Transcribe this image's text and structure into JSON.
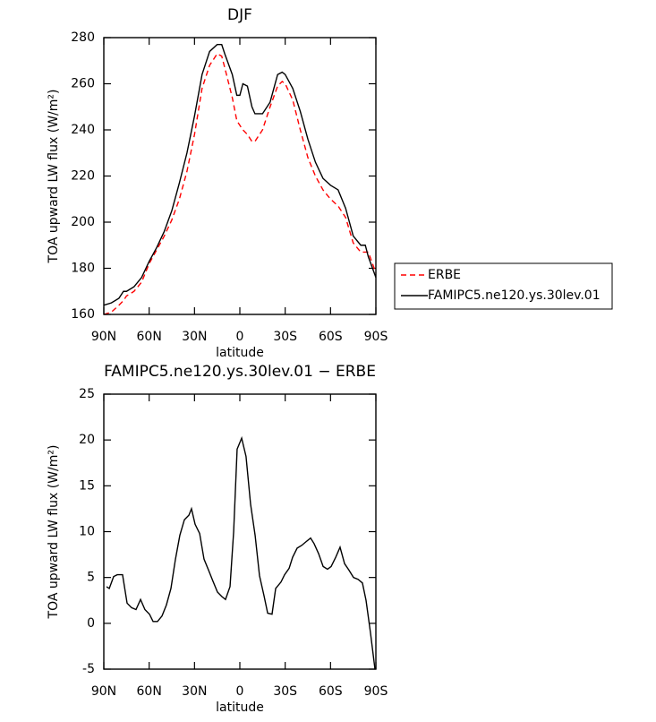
{
  "chart_data": [
    {
      "type": "line",
      "title": "DJF",
      "x_label": "latitude",
      "y_label": "TOA upward LW flux (W/m²)",
      "x": [
        90,
        85,
        80,
        77,
        75,
        70,
        65,
        60,
        55,
        50,
        45,
        40,
        35,
        30,
        25,
        20,
        15,
        12,
        10,
        5,
        2,
        0,
        -2,
        -5,
        -8,
        -10,
        -15,
        -20,
        -25,
        -28,
        -30,
        -35,
        -40,
        -45,
        -50,
        -55,
        -60,
        -65,
        -70,
        -75,
        -80,
        -83,
        -85,
        -90
      ],
      "series": [
        {
          "name": "ERBE",
          "color": "#ff0000",
          "dash": true,
          "values": [
            160,
            161,
            164,
            166,
            168,
            170,
            174,
            182,
            188,
            194,
            201,
            210,
            222,
            238,
            258,
            268,
            273,
            272,
            267,
            254,
            244,
            242,
            240,
            238,
            235,
            235,
            240,
            250,
            259,
            261,
            260,
            253,
            240,
            228,
            220,
            214,
            210,
            207,
            202,
            191,
            187,
            187,
            187,
            178
          ]
        },
        {
          "name": "FAMIPC5.ne120.ys.30lev.01",
          "color": "#000000",
          "dash": false,
          "values": [
            164,
            165,
            167,
            170,
            170,
            172,
            176,
            183,
            189,
            196,
            205,
            217,
            230,
            246,
            264,
            274,
            277,
            277,
            273,
            264,
            255,
            255,
            260,
            259,
            250,
            247,
            247,
            252,
            264,
            265,
            264,
            258,
            248,
            236,
            226,
            219,
            216,
            214,
            206,
            194,
            190,
            190,
            185,
            176
          ]
        }
      ],
      "xlim": [
        90,
        -90
      ],
      "xticks": [
        {
          "value": 90,
          "label": "90N"
        },
        {
          "value": 60,
          "label": "60N"
        },
        {
          "value": 30,
          "label": "30N"
        },
        0,
        {
          "value": -30,
          "label": "30S"
        },
        {
          "value": -60,
          "label": "60S"
        },
        {
          "value": -90,
          "label": "90S"
        }
      ],
      "ylim": [
        160,
        280
      ],
      "yticks": [
        160,
        180,
        200,
        220,
        240,
        260,
        280
      ],
      "legend": "right"
    },
    {
      "type": "line",
      "title": "FAMIPC5.ne120.ys.30lev.01 − ERBE",
      "x_label": "latitude",
      "y_label": "TOA upward LW flux (W/m²)",
      "x": [
        88.2,
        86.4,
        83.5,
        81.1,
        77.6,
        74.6,
        71.6,
        68.7,
        65.7,
        62.8,
        59.8,
        57.4,
        54.5,
        51.5,
        48.6,
        45.6,
        42.6,
        39.7,
        36.7,
        33.7,
        32.0,
        29.6,
        26.6,
        23.7,
        20.7,
        17.8,
        14.8,
        11.8,
        9.5,
        6.5,
        4.1,
        1.8,
        -1.2,
        -4.1,
        -7.1,
        -10.1,
        -13.0,
        -16.0,
        -18.4,
        -21.3,
        -23.7,
        -27.2,
        -29.6,
        -32.6,
        -34.9,
        -37.9,
        -40.9,
        -43.8,
        -46.8,
        -49.1,
        -52.1,
        -55.1,
        -58.0,
        -60.4,
        -63.4,
        -66.3,
        -69.3,
        -72.2,
        -75.2,
        -78.2,
        -81.1,
        -83.5,
        -86.4,
        -89.4
      ],
      "values": [
        4.0,
        3.8,
        5.1,
        5.3,
        5.3,
        2.2,
        1.7,
        1.5,
        2.6,
        1.5,
        1.0,
        0.2,
        0.2,
        0.8,
        2.0,
        3.8,
        7.0,
        9.6,
        11.3,
        11.8,
        12.5,
        10.8,
        9.8,
        7.0,
        5.8,
        4.6,
        3.4,
        2.9,
        2.6,
        4.0,
        10.0,
        19.0,
        20.2,
        18.2,
        13.0,
        9.6,
        5.2,
        3.0,
        1.1,
        1.0,
        3.8,
        4.5,
        5.3,
        6.0,
        7.2,
        8.2,
        8.5,
        8.9,
        9.3,
        8.7,
        7.6,
        6.2,
        5.9,
        6.2,
        7.2,
        8.3,
        6.5,
        5.8,
        5.0,
        4.8,
        4.4,
        2.5,
        -1.0,
        -5.0
      ],
      "color": "#000000",
      "xlim": [
        90,
        -90
      ],
      "xticks": [
        {
          "value": 90,
          "label": "90N"
        },
        {
          "value": 60,
          "label": "60N"
        },
        {
          "value": 30,
          "label": "30N"
        },
        0,
        {
          "value": -30,
          "label": "30S"
        },
        {
          "value": -60,
          "label": "60S"
        },
        {
          "value": -90,
          "label": "90S"
        }
      ],
      "ylim": [
        -5,
        25
      ],
      "yticks": [
        -5,
        0,
        5,
        10,
        15,
        20,
        25
      ]
    }
  ]
}
